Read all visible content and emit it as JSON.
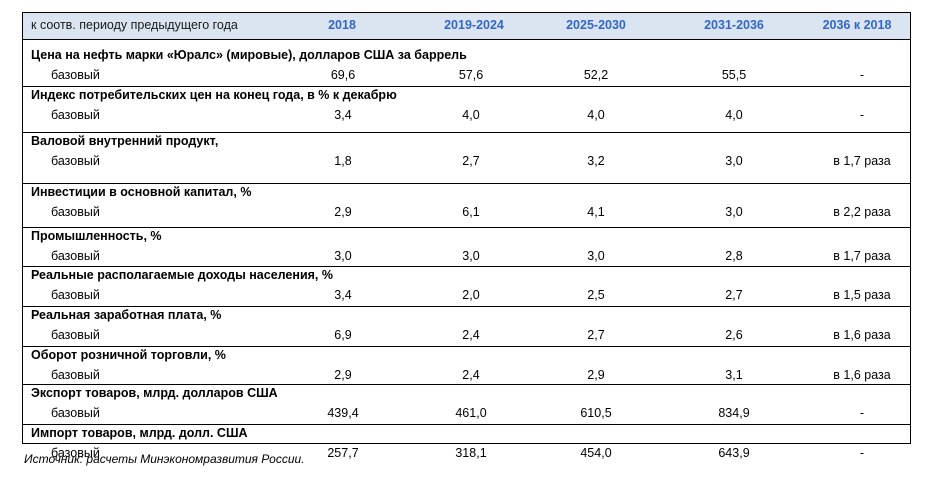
{
  "header": {
    "label": "к соотв. периоду предыдущего года",
    "columns": [
      "2018",
      "2019-2024",
      "2025-2030",
      "2031-2036",
      "2036 к 2018"
    ]
  },
  "rows": [
    {
      "title": "Цена на нефть марки «Юралс» (мировые), долларов США за баррель",
      "scenario": "базовый",
      "values": [
        "69,6",
        "57,6",
        "52,2",
        "55,5",
        "-"
      ]
    },
    {
      "title": "Индекс потребительских цен на конец года, в % к декабрю",
      "scenario": "базовый",
      "values": [
        "3,4",
        "4,0",
        "4,0",
        "4,0",
        "-"
      ]
    },
    {
      "title": "Валовой внутренний продукт,",
      "scenario": "базовый",
      "values": [
        "1,8",
        "2,7",
        "3,2",
        "3,0",
        "в 1,7 раза"
      ]
    },
    {
      "title": "Инвестиции в основной капитал, %",
      "scenario": "базовый",
      "values": [
        "2,9",
        "6,1",
        "4,1",
        "3,0",
        "в 2,2 раза"
      ]
    },
    {
      "title": "Промышленность, %",
      "scenario": "базовый",
      "values": [
        "3,0",
        "3,0",
        "3,0",
        "2,8",
        "в 1,7 раза"
      ]
    },
    {
      "title": "Реальные располагаемые доходы населения, %",
      "scenario": "базовый",
      "values": [
        "3,4",
        "2,0",
        "2,5",
        "2,7",
        "в 1,5 раза"
      ]
    },
    {
      "title": "Реальная заработная плата, %",
      "scenario": "базовый",
      "values": [
        "6,9",
        "2,4",
        "2,7",
        "2,6",
        "в 1,6 раза"
      ]
    },
    {
      "title": "Оборот розничной торговли, %",
      "scenario": "базовый",
      "values": [
        "2,9",
        "2,4",
        "2,9",
        "3,1",
        "в 1,6 раза"
      ]
    },
    {
      "title": "Экспорт товаров, млрд. долларов США",
      "scenario": "базовый",
      "values": [
        "439,4",
        "461,0",
        "610,5",
        "834,9",
        "-"
      ]
    },
    {
      "title": "Импорт товаров, млрд. долл. США",
      "scenario": "базовый",
      "values": [
        "257,7",
        "318,1",
        "454,0",
        "643,9",
        "-"
      ]
    }
  ],
  "source": "Источник: расчеты Минэкономразвития России."
}
